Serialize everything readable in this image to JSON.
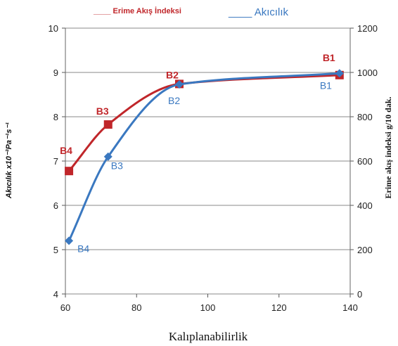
{
  "chart_data": {
    "type": "line",
    "title": "",
    "xlabel": "Kalıplanabilirlik",
    "ylabel_left": "Akıcılık x10⁻³Pa⁻¹s⁻¹",
    "ylabel_right": "Erime akış indeksi g/10 dak.",
    "xlim": [
      60,
      140
    ],
    "ylim_left": [
      4,
      10
    ],
    "ylim_right": [
      0,
      1200
    ],
    "x_ticks": [
      "60",
      "80",
      "100",
      "120",
      "140"
    ],
    "y_left_ticks": [
      "4",
      "5",
      "6",
      "7",
      "8",
      "9",
      "10"
    ],
    "y_right_ticks": [
      "0",
      "200",
      "400",
      "600",
      "800",
      "1000",
      "1200"
    ],
    "legend": [
      {
        "text": "____ Erime Akış İndeksi",
        "color": "#c0262a"
      },
      {
        "text": "____ Akıcılık",
        "color": "#3a78c0"
      }
    ],
    "series": [
      {
        "name": "Erime Akış İndeksi",
        "axis": "right",
        "color": "#c0262a",
        "marker": "square",
        "points": [
          {
            "label": "B4",
            "x": 61,
            "y": 555
          },
          {
            "label": "B3",
            "x": 72,
            "y": 765
          },
          {
            "label": "B2",
            "x": 92,
            "y": 948
          },
          {
            "label": "B1",
            "x": 137,
            "y": 988
          }
        ]
      },
      {
        "name": "Akıcılık",
        "axis": "left",
        "color": "#3a78c0",
        "marker": "diamond",
        "points": [
          {
            "label": "B4",
            "x": 61,
            "y": 5.2
          },
          {
            "label": "B3",
            "x": 72,
            "y": 7.1
          },
          {
            "label": "B2",
            "x": 92,
            "y": 8.73
          },
          {
            "label": "B1",
            "x": 137,
            "y": 8.98
          }
        ]
      }
    ]
  }
}
